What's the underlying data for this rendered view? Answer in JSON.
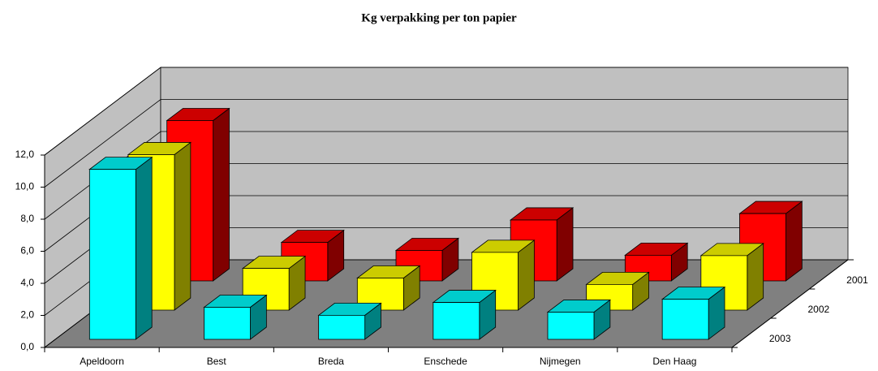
{
  "chart_data": {
    "type": "bar3d",
    "title": "Kg verpakking per ton papier",
    "categories": [
      "Apeldoorn",
      "Best",
      "Breda",
      "Enschede",
      "Nijmegen",
      "Den Haag"
    ],
    "series": [
      {
        "name": "2001",
        "color": "#ff0000",
        "values": [
          10.0,
          2.4,
          1.9,
          3.8,
          1.6,
          4.2
        ]
      },
      {
        "name": "2002",
        "color": "#ffff00",
        "values": [
          9.7,
          2.6,
          2.0,
          3.6,
          1.6,
          3.4
        ]
      },
      {
        "name": "2003",
        "color": "#00ffff",
        "values": [
          10.6,
          2.0,
          1.5,
          2.3,
          1.7,
          2.5
        ]
      }
    ],
    "ylim": [
      0,
      12
    ],
    "yticks": [
      {
        "value": 0,
        "label": "0,0"
      },
      {
        "value": 2,
        "label": "2,0"
      },
      {
        "value": 4,
        "label": "4,0"
      },
      {
        "value": 6,
        "label": "6,0"
      },
      {
        "value": 8,
        "label": "8,0"
      },
      {
        "value": 10,
        "label": "10,0"
      },
      {
        "value": 12,
        "label": "12,0"
      }
    ],
    "grid": true
  }
}
